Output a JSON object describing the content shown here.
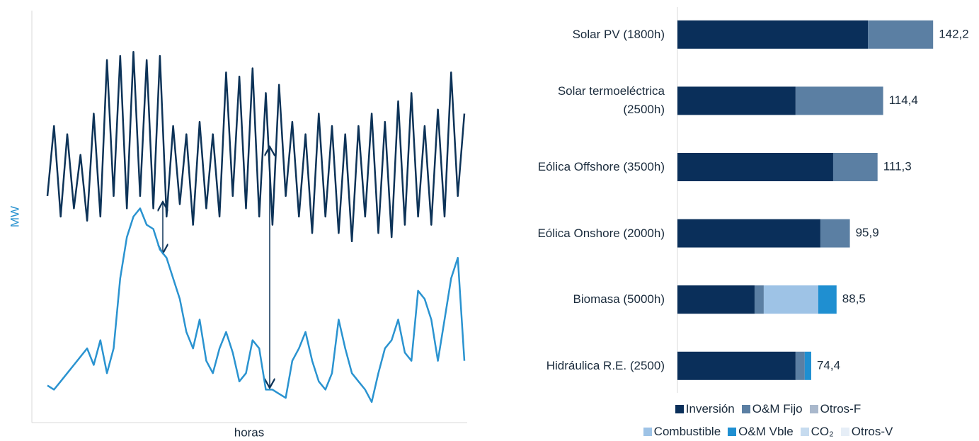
{
  "chart_data": [
    {
      "type": "line",
      "x_label": "horas",
      "y_label": "MW",
      "ylim": [
        0,
        100
      ],
      "series": [
        {
          "color": "#0d3358",
          "values": [
            55,
            72,
            50,
            70,
            52,
            65,
            49,
            75,
            50,
            88,
            55,
            89,
            52,
            90,
            55,
            88,
            52,
            89,
            50,
            72,
            53,
            70,
            48,
            73,
            52,
            70,
            50,
            85,
            55,
            84,
            52,
            86,
            50,
            80,
            48,
            82,
            55,
            73,
            50,
            70,
            46,
            75,
            50,
            72,
            46,
            70,
            44,
            72,
            50,
            75,
            46,
            73,
            45,
            78,
            48,
            80,
            50,
            72,
            48,
            76,
            50,
            85,
            55,
            75
          ]
        },
        {
          "color": "#2a93d0",
          "values": [
            9,
            8,
            10,
            12,
            14,
            16,
            18,
            14,
            20,
            12,
            18,
            35,
            45,
            50,
            52,
            48,
            47,
            42,
            40,
            35,
            30,
            22,
            18,
            25,
            15,
            12,
            18,
            22,
            17,
            10,
            12,
            20,
            18,
            8,
            8,
            7,
            6,
            15,
            18,
            22,
            15,
            10,
            8,
            12,
            25,
            18,
            12,
            10,
            8,
            5,
            12,
            18,
            20,
            25,
            17,
            15,
            32,
            30,
            25,
            15,
            25,
            35,
            40,
            15
          ]
        }
      ]
    },
    {
      "type": "stacked_barh",
      "categories": [
        "Solar PV (1800h)",
        "Solar termoeléctrica\n(2500h)",
        "Eólica Offshore (3500h)",
        "Eólica Onshore (2000h)",
        "Biomasa (5000h)",
        "Hidráulica R.E. (2500)"
      ],
      "xlim": [
        0,
        150
      ],
      "series": [
        {
          "name": "Inversión",
          "color": "#0a2f5a",
          "values": [
            106,
            65.7,
            86.6,
            79.5,
            42.9,
            65.7
          ]
        },
        {
          "name": "O&M Fijo",
          "color": "#5b7fa3",
          "values": [
            36.2,
            48.7,
            24.7,
            16.4,
            5.1,
            5.1
          ]
        },
        {
          "name": "Otros-F",
          "color": "#a9b8cc",
          "values": [
            0,
            0,
            0,
            0,
            0,
            0
          ]
        },
        {
          "name": "Combustible",
          "color": "#9ec3e6",
          "values": [
            0,
            0,
            0,
            0,
            30.3,
            0
          ]
        },
        {
          "name": "O&M Vble",
          "color": "#1f8fd1",
          "values": [
            0,
            0,
            0,
            0,
            10.2,
            3.6
          ]
        },
        {
          "name": "CO₂",
          "color": "#c6dbef",
          "values": [
            0,
            0,
            0,
            0,
            0,
            0
          ]
        },
        {
          "name": "Otros-V",
          "color": "#e6eef7",
          "values": [
            0,
            0,
            0,
            0,
            0,
            0
          ]
        }
      ],
      "totals": [
        142.2,
        114.4,
        111.3,
        95.9,
        88.5,
        74.4
      ],
      "total_labels": [
        "142,2",
        "114,4",
        "111,3",
        "95,9",
        "88,5",
        "74,4"
      ]
    }
  ]
}
